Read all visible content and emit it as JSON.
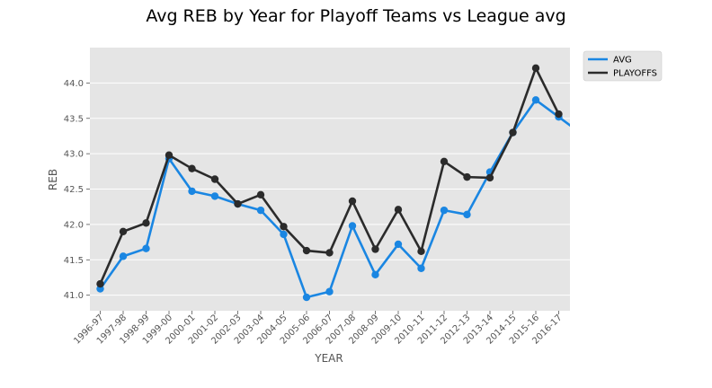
{
  "chart_data": {
    "type": "line",
    "title": "Avg REB by Year for Playoff Teams vs League avg",
    "xlabel": "YEAR",
    "ylabel": "REB",
    "ylim": [
      40.78,
      44.5
    ],
    "yticks": [
      "41.0",
      "41.5",
      "42.0",
      "42.5",
      "43.0",
      "43.5",
      "44.0"
    ],
    "grid": true,
    "legend_position": "top-right outside",
    "background": "#e5e5e5",
    "categories": [
      "1996-97",
      "1997-98",
      "1998-99",
      "1999-00",
      "2000-01",
      "2001-02",
      "2002-03",
      "2003-04",
      "2004-05",
      "2005-06",
      "2006-07",
      "2007-08",
      "2008-09",
      "2009-10",
      "2010-11",
      "2011-12",
      "2012-13",
      "2013-14",
      "2014-15",
      "2015-16",
      "2016-17"
    ],
    "series": [
      {
        "name": "AVG",
        "color": "#1a86e2",
        "values": [
          41.09,
          41.55,
          41.66,
          42.93,
          42.47,
          42.4,
          42.29,
          42.2,
          41.86,
          40.97,
          41.05,
          41.98,
          41.29,
          41.72,
          41.38,
          42.2,
          42.14,
          42.74,
          43.3,
          43.76,
          43.52
        ]
      },
      {
        "name": "PLAYOFFS",
        "color": "#2b2b2b",
        "values": [
          41.16,
          41.9,
          42.02,
          42.98,
          42.79,
          42.64,
          42.29,
          42.42,
          41.97,
          41.63,
          41.6,
          42.33,
          41.65,
          42.21,
          41.62,
          42.89,
          42.67,
          42.66,
          43.3,
          44.21,
          43.56
        ]
      }
    ]
  }
}
